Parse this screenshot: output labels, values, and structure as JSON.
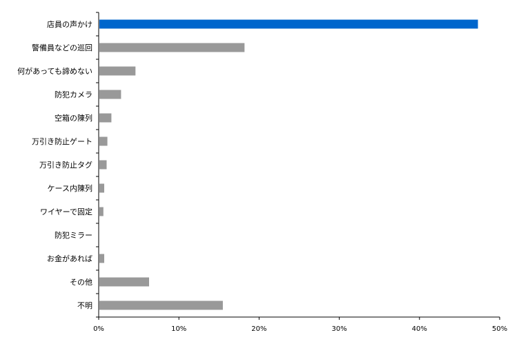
{
  "chart_data": {
    "type": "bar",
    "orientation": "horizontal",
    "categories": [
      "店員の声かけ",
      "警備員などの巡回",
      "何があっても諦めない",
      "防犯カメラ",
      "空箱の陳列",
      "万引き防止ゲート",
      "万引き防止タグ",
      "ケース内陳列",
      "ワイヤーで固定",
      "防犯ミラー",
      "お金があれば",
      "その他",
      "不明"
    ],
    "values": [
      47.2,
      18.1,
      4.5,
      2.7,
      1.5,
      1.0,
      0.9,
      0.6,
      0.5,
      0.0,
      0.6,
      6.2,
      15.4
    ],
    "highlight_index": 0,
    "colors": {
      "highlight": "#0066CC",
      "default": "#999999",
      "axis": "#000000"
    },
    "xlim": [
      0,
      50
    ],
    "xticks": [
      0,
      10,
      20,
      30,
      40,
      50
    ],
    "xtick_labels": [
      "0%",
      "10%",
      "20%",
      "30%",
      "40%",
      "50%"
    ],
    "grid": false,
    "legend": false
  }
}
